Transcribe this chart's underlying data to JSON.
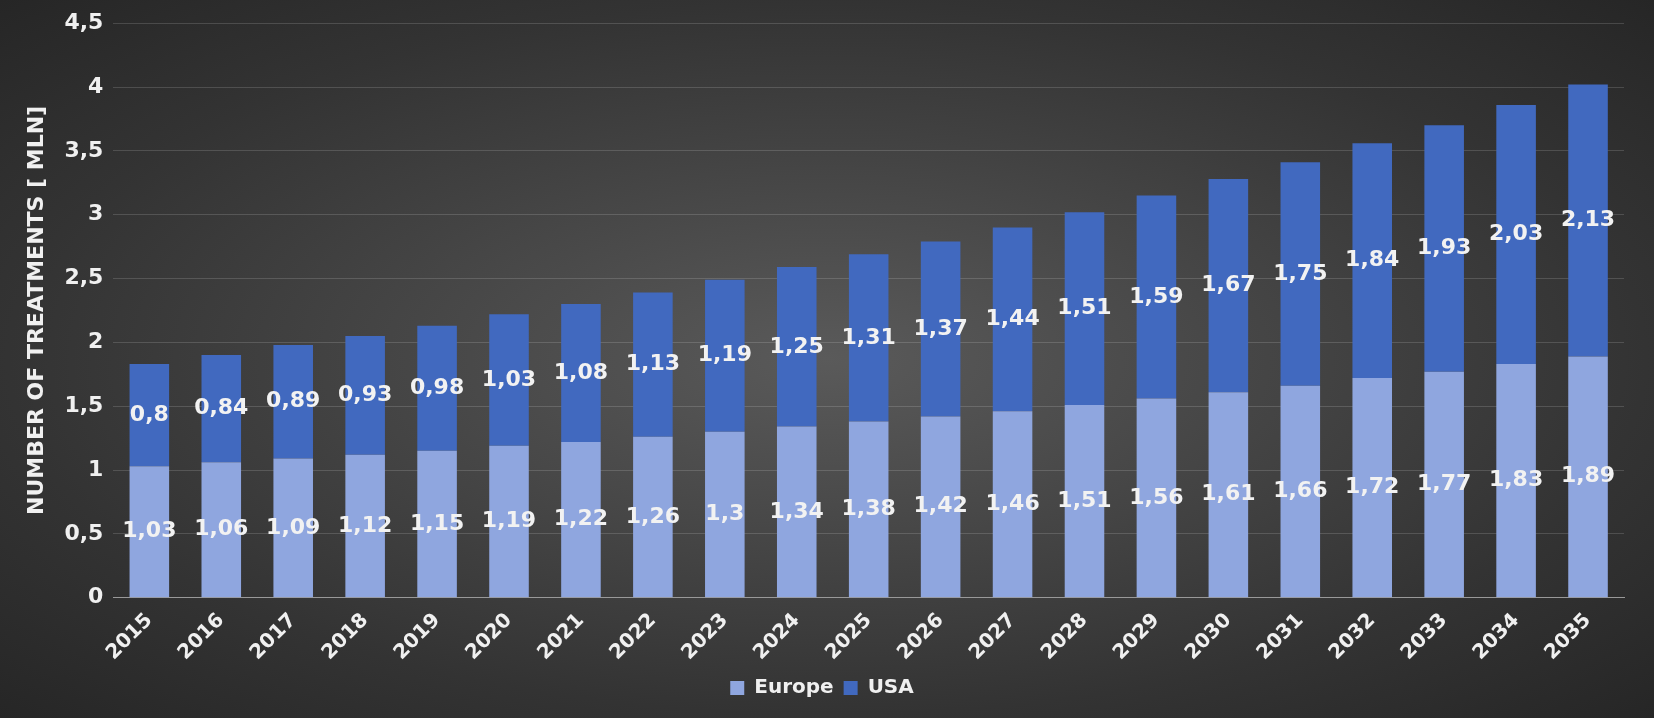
{
  "chart_data": {
    "type": "bar",
    "stacked": true,
    "ylabel": "NUMBER OF TREATMENTS [ MLN]",
    "categories": [
      "2015",
      "2016",
      "2017",
      "2018",
      "2019",
      "2020",
      "2021",
      "2022",
      "2023",
      "2024",
      "2025",
      "2026",
      "2027",
      "2028",
      "2029",
      "2030",
      "2031",
      "2032",
      "2033",
      "2034",
      "2035"
    ],
    "series": [
      {
        "name": "Europe",
        "color": "#8fa6df",
        "values": [
          1.03,
          1.06,
          1.09,
          1.12,
          1.15,
          1.19,
          1.22,
          1.26,
          1.3,
          1.34,
          1.38,
          1.42,
          1.46,
          1.51,
          1.56,
          1.61,
          1.66,
          1.72,
          1.77,
          1.83,
          1.89
        ],
        "value_labels": [
          "1,03",
          "1,06",
          "1,09",
          "1,12",
          "1,15",
          "1,19",
          "1,22",
          "1,26",
          "1,3",
          "1,34",
          "1,38",
          "1,42",
          "1,46",
          "1,51",
          "1,56",
          "1,61",
          "1,66",
          "1,72",
          "1,77",
          "1,83",
          "1,89"
        ]
      },
      {
        "name": "USA",
        "color": "#4169bf",
        "values": [
          0.8,
          0.84,
          0.89,
          0.93,
          0.98,
          1.03,
          1.08,
          1.13,
          1.19,
          1.25,
          1.31,
          1.37,
          1.44,
          1.51,
          1.59,
          1.67,
          1.75,
          1.84,
          1.93,
          2.03,
          2.13
        ],
        "value_labels": [
          "0,8",
          "0,84",
          "0,89",
          "0,93",
          "0,98",
          "1,03",
          "1,08",
          "1,13",
          "1,19",
          "1,25",
          "1,31",
          "1,37",
          "1,44",
          "1,51",
          "1,59",
          "1,67",
          "1,75",
          "1,84",
          "1,93",
          "2,03",
          "2,13"
        ]
      }
    ],
    "ylim": [
      0,
      4.5
    ],
    "yticks": [
      {
        "value": 0,
        "label": "0"
      },
      {
        "value": 0.5,
        "label": "0,5"
      },
      {
        "value": 1,
        "label": "1"
      },
      {
        "value": 1.5,
        "label": "1,5"
      },
      {
        "value": 2,
        "label": "2"
      },
      {
        "value": 2.5,
        "label": "2,5"
      },
      {
        "value": 3,
        "label": "3"
      },
      {
        "value": 3.5,
        "label": "3,5"
      },
      {
        "value": 4,
        "label": "4"
      },
      {
        "value": 4.5,
        "label": "4,5"
      }
    ],
    "grid": "y",
    "legend": "bottom"
  }
}
